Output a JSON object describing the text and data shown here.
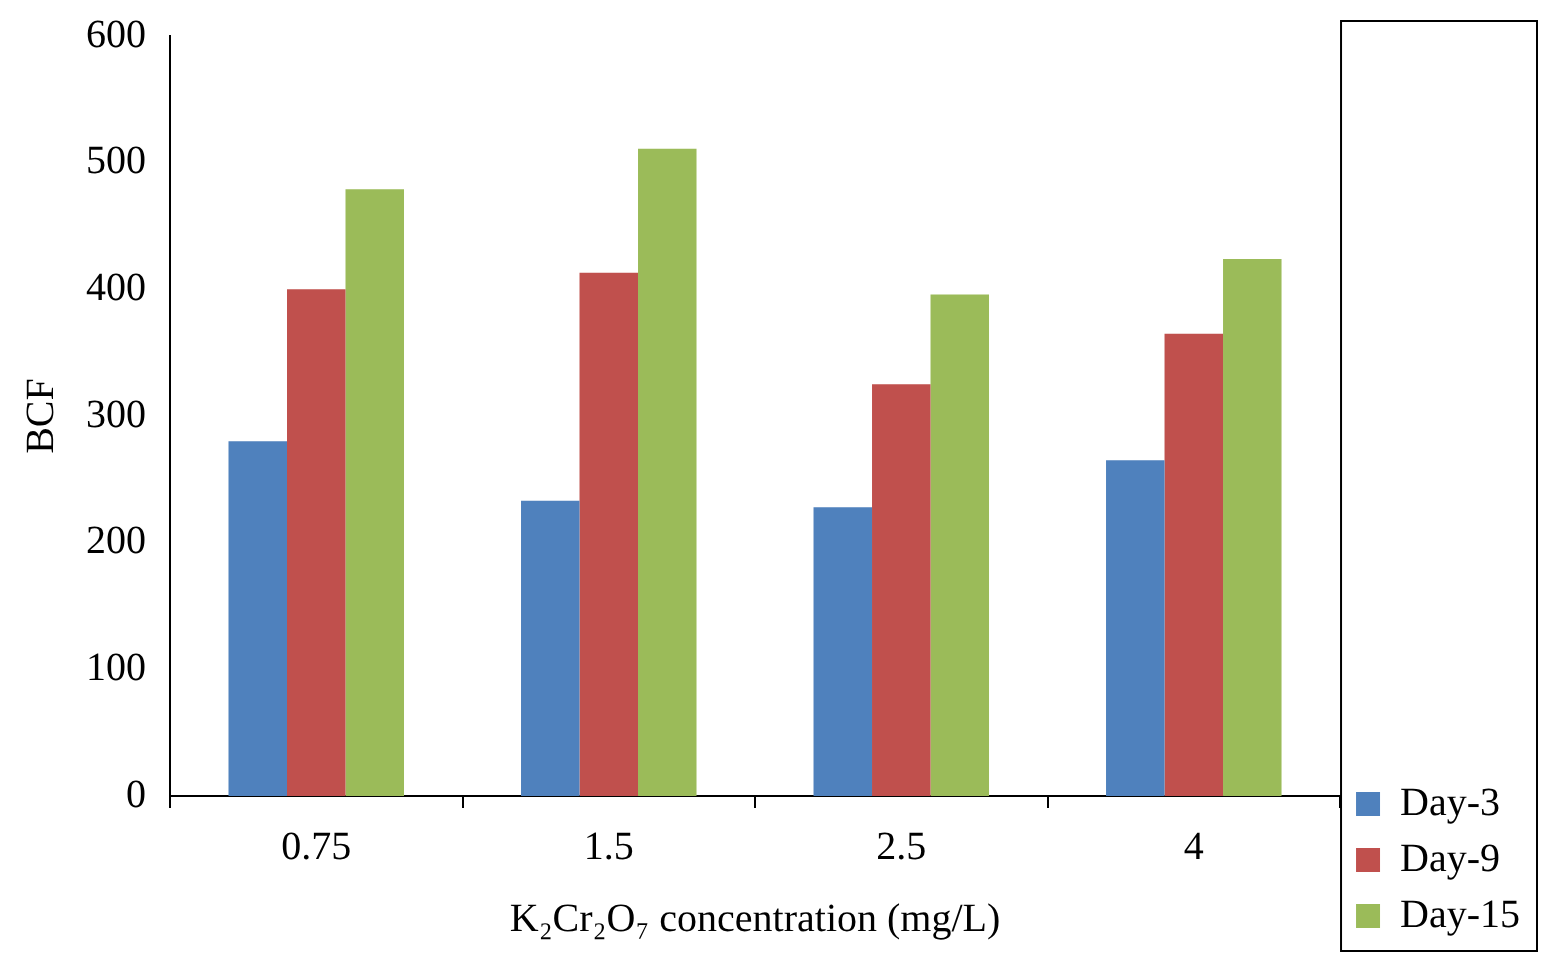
{
  "chart_data": {
    "type": "bar",
    "xlabel": "K₂Cr₂O₇ concentration (mg/L)",
    "ylabel": "BCF",
    "categories": [
      "0.75",
      "1.5",
      "2.5",
      "4"
    ],
    "series": [
      {
        "name": "Day-3",
        "color": "#4f81bd",
        "values": [
          280,
          233,
          228,
          265
        ]
      },
      {
        "name": "Day-9",
        "color": "#c0504d",
        "values": [
          400,
          413,
          325,
          365
        ]
      },
      {
        "name": "Day-15",
        "color": "#9bbb59",
        "values": [
          479,
          511,
          396,
          424
        ]
      }
    ],
    "ylim": [
      0,
      600
    ],
    "yticks": [
      0,
      100,
      200,
      300,
      400,
      500,
      600
    ],
    "grid": false,
    "legend": "bottom right"
  }
}
